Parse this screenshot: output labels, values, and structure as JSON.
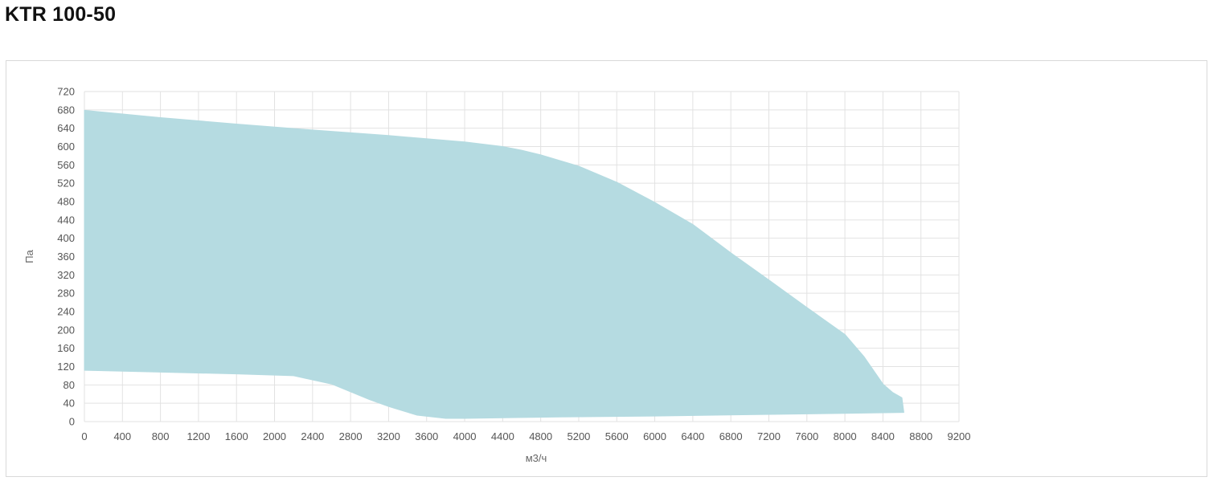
{
  "title": "KTR 100-50",
  "chart_data": {
    "type": "area",
    "title": "KTR 100-50",
    "xlabel": "м3/ч",
    "ylabel": "Па",
    "xlim": [
      0,
      9200
    ],
    "ylim": [
      0,
      720
    ],
    "xticks": [
      0,
      400,
      800,
      1200,
      1600,
      2000,
      2400,
      2800,
      3200,
      3600,
      4000,
      4400,
      4800,
      5200,
      5600,
      6000,
      6400,
      6800,
      7200,
      7600,
      8000,
      8400,
      8800,
      9200
    ],
    "yticks": [
      0,
      40,
      80,
      120,
      160,
      200,
      240,
      280,
      320,
      360,
      400,
      440,
      480,
      520,
      560,
      600,
      640,
      680,
      720
    ],
    "grid": true,
    "color": "#b5dbe1",
    "upper_boundary": {
      "x": [
        0,
        800,
        1600,
        2400,
        3200,
        4000,
        4400,
        4600,
        4800,
        5200,
        5600,
        6000,
        6400,
        6800,
        7200,
        7600,
        8000,
        8200,
        8400,
        8500,
        8600,
        8620
      ],
      "y": [
        679,
        663,
        649,
        636,
        624,
        610,
        600,
        592,
        582,
        557,
        522,
        478,
        430,
        368,
        309,
        249,
        190,
        142,
        82,
        64,
        52,
        20
      ]
    },
    "lower_boundary": {
      "x": [
        0,
        800,
        1600,
        2200,
        2600,
        3000,
        3200,
        3500,
        3800,
        4000,
        5000,
        6000,
        7000,
        8000,
        8620
      ],
      "y": [
        112,
        108,
        104,
        100,
        82,
        48,
        33,
        14,
        7,
        7,
        10,
        12,
        15,
        18,
        20
      ]
    }
  }
}
